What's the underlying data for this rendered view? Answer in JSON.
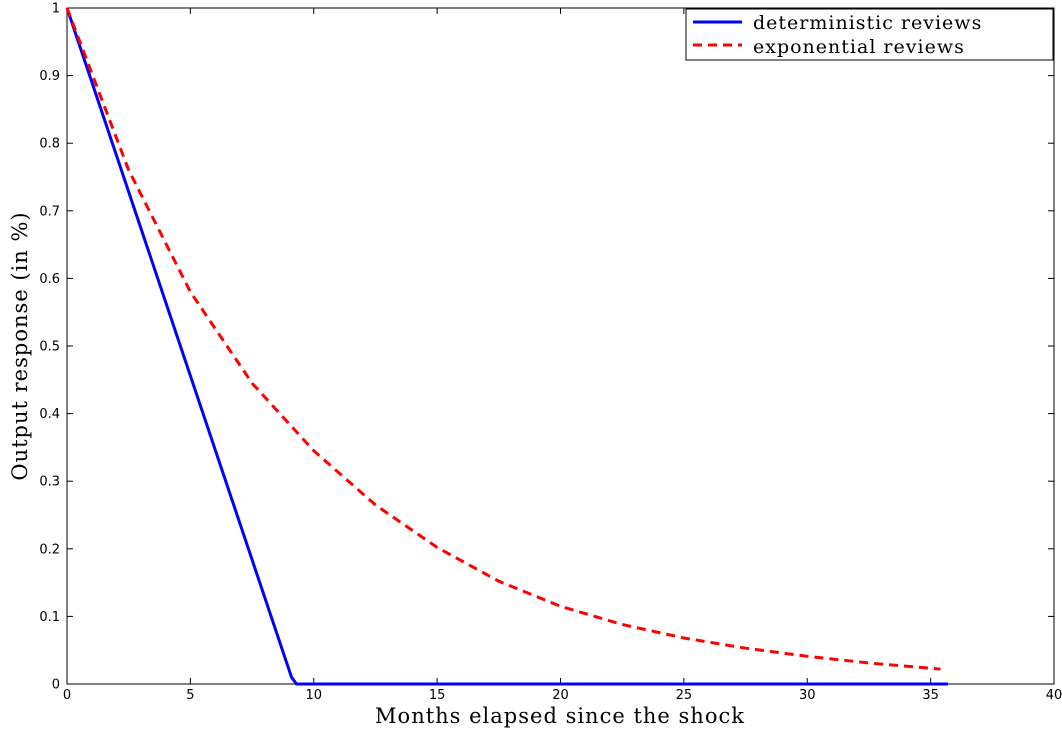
{
  "chart_data": {
    "type": "line",
    "xlabel": "Months elapsed since the shock",
    "ylabel": "Output response (in %)",
    "xlim": [
      0,
      40
    ],
    "ylim": [
      0,
      1
    ],
    "xticks": [
      0,
      5,
      10,
      15,
      20,
      25,
      30,
      35,
      40
    ],
    "yticks": [
      0,
      0.1,
      0.2,
      0.3,
      0.4,
      0.5,
      0.6,
      0.7,
      0.8,
      0.9,
      1
    ],
    "xtick_labels": [
      "0",
      "5",
      "10",
      "15",
      "20",
      "25",
      "30",
      "35",
      "40"
    ],
    "ytick_labels": [
      "0",
      "0.1",
      "0.2",
      "0.3",
      "0.4",
      "0.5",
      "0.6",
      "0.7",
      "0.8",
      "0.9",
      "1"
    ],
    "grid": false,
    "legend_position": "top-right",
    "series": [
      {
        "name": "deterministic reviews",
        "color": "#0000ff",
        "style": "solid",
        "x": [
          0,
          9.1,
          9.3,
          35.7
        ],
        "y": [
          1,
          0.01,
          0,
          0
        ]
      },
      {
        "name": "exponential reviews",
        "color": "#ff0000",
        "style": "dashed",
        "x": [
          0,
          2.5,
          5,
          7.5,
          10,
          12.5,
          15,
          17.5,
          20,
          22.5,
          25,
          27.5,
          30,
          32.5,
          35.4
        ],
        "y": [
          1,
          0.76,
          0.58,
          0.445,
          0.345,
          0.265,
          0.202,
          0.152,
          0.115,
          0.088,
          0.068,
          0.053,
          0.041,
          0.031,
          0.022
        ]
      }
    ]
  }
}
